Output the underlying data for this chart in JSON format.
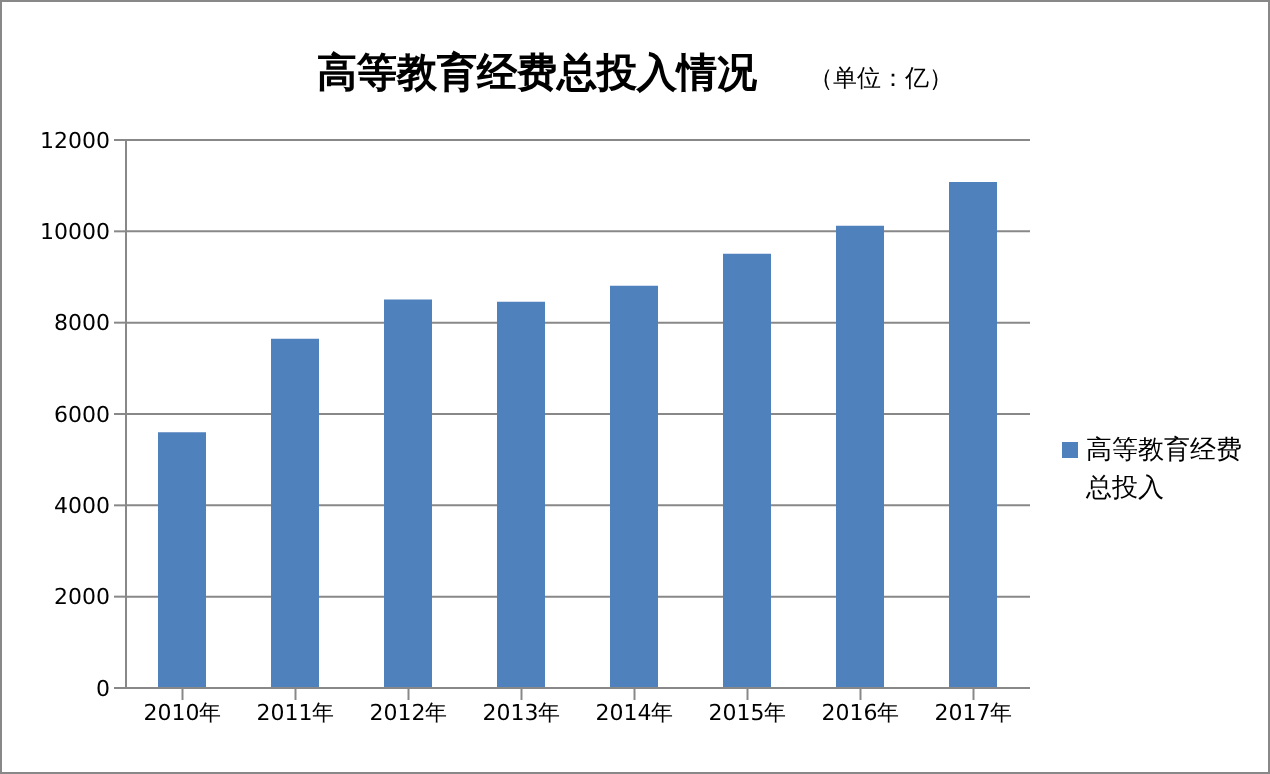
{
  "chart_data": {
    "type": "bar",
    "title": "高等教育经费总投入情况",
    "subtitle": "（单位：亿）",
    "categories": [
      "2010年",
      "2011年",
      "2012年",
      "2013年",
      "2014年",
      "2015年",
      "2016年",
      "2017年"
    ],
    "series": [
      {
        "name": "高等教育经费总投入",
        "color": "#4f81bd",
        "values": [
          5600,
          7650,
          8510,
          8460,
          8810,
          9510,
          10120,
          11080
        ]
      }
    ],
    "ylim": [
      0,
      12000
    ],
    "yticks": [
      0,
      2000,
      4000,
      6000,
      8000,
      10000,
      12000
    ],
    "grid": "y",
    "legend": "right"
  }
}
